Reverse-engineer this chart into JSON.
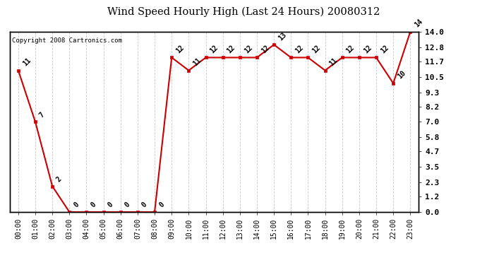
{
  "title": "Wind Speed Hourly High (Last 24 Hours) 20080312",
  "copyright": "Copyright 2008 Cartronics.com",
  "hours": [
    "00:00",
    "01:00",
    "02:00",
    "03:00",
    "04:00",
    "05:00",
    "06:00",
    "07:00",
    "08:00",
    "09:00",
    "10:00",
    "11:00",
    "12:00",
    "13:00",
    "14:00",
    "15:00",
    "16:00",
    "17:00",
    "18:00",
    "19:00",
    "20:00",
    "21:00",
    "22:00",
    "23:00"
  ],
  "values": [
    11,
    7,
    2,
    0,
    0,
    0,
    0,
    0,
    0,
    12,
    11,
    12,
    12,
    12,
    12,
    13,
    12,
    12,
    11,
    12,
    12,
    12,
    10,
    14
  ],
  "line_color": "#cc0000",
  "marker_color": "#cc0000",
  "bg_color": "#ffffff",
  "grid_color": "#c8c8c8",
  "ylim": [
    0,
    14
  ],
  "yticks": [
    0.0,
    1.2,
    2.3,
    3.5,
    4.7,
    5.8,
    7.0,
    8.2,
    9.3,
    10.5,
    11.7,
    12.8,
    14.0
  ],
  "ytick_labels": [
    "0.0",
    "1.2",
    "2.3",
    "3.5",
    "4.7",
    "5.8",
    "7.0",
    "8.2",
    "9.3",
    "10.5",
    "11.7",
    "12.8",
    "14.0"
  ]
}
